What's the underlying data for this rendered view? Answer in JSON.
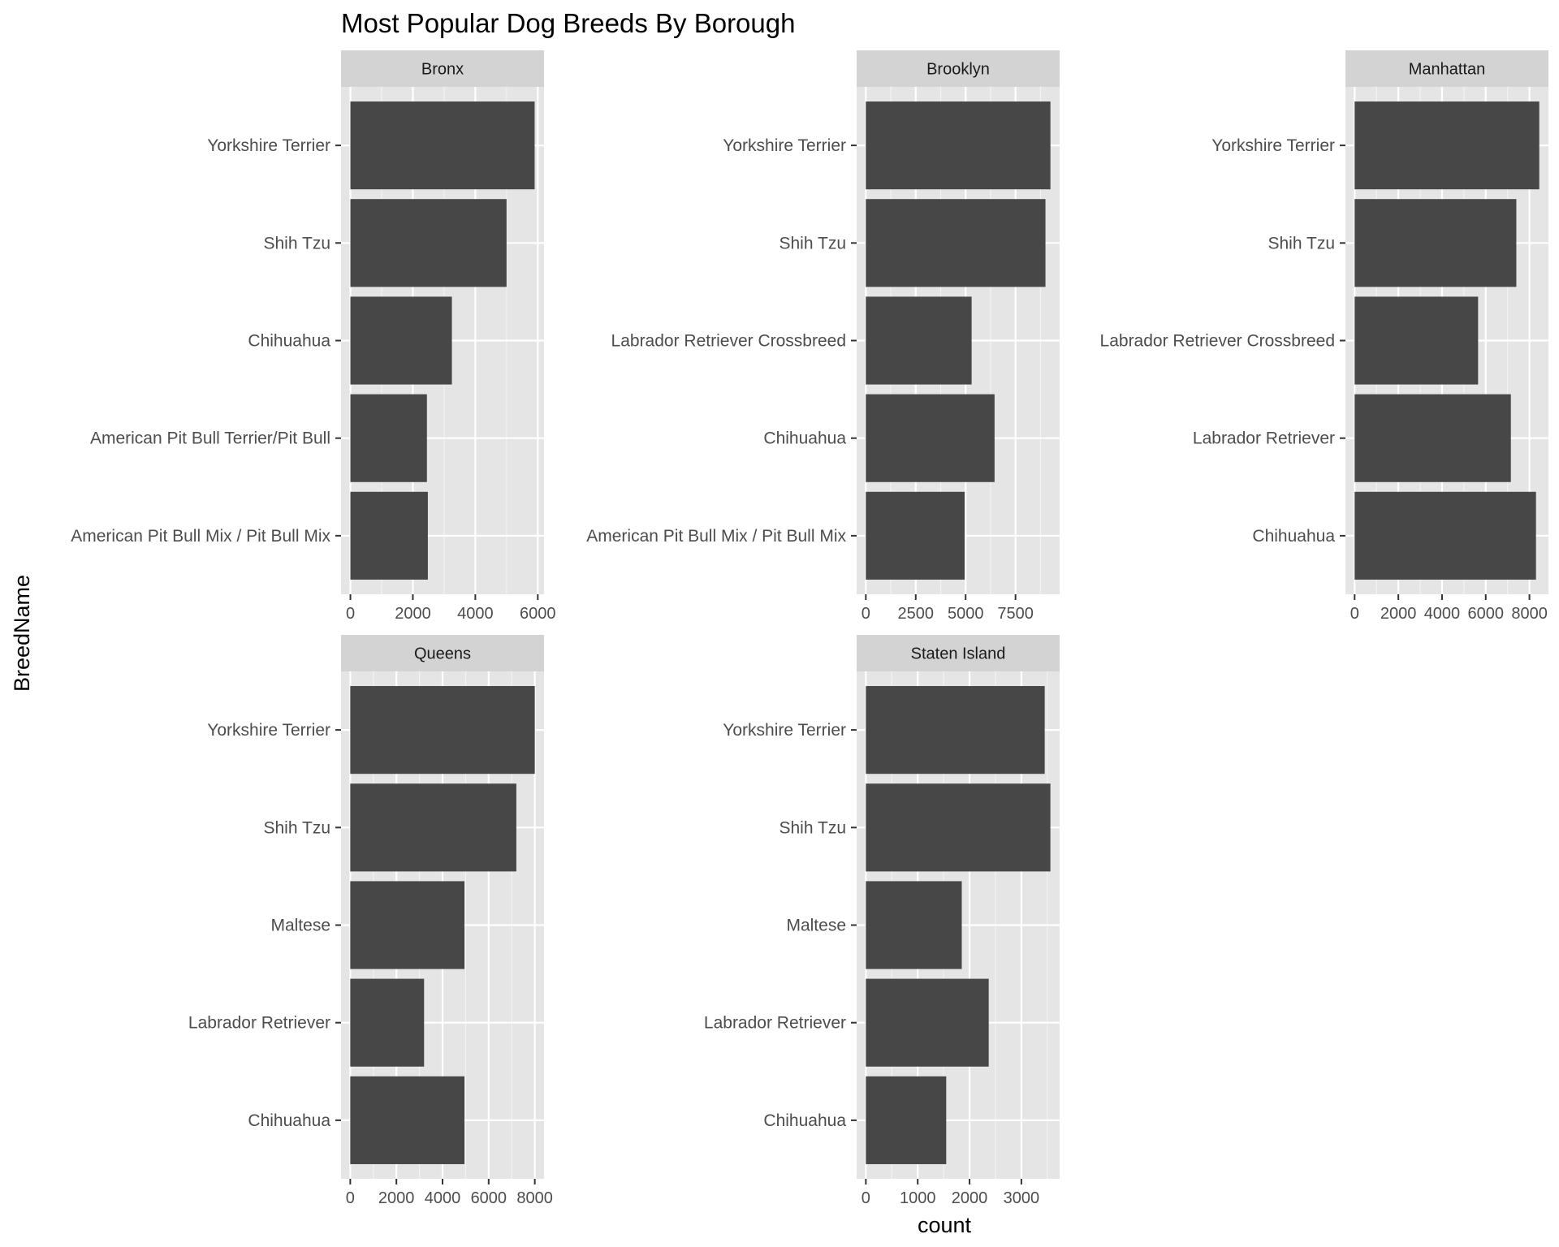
{
  "chart_data": {
    "type": "bar",
    "orientation": "horizontal",
    "title": "Most Popular Dog Breeds By Borough",
    "xlabel": "count",
    "ylabel": "BreedName",
    "grid": true,
    "colors": {
      "bar": "#474747",
      "panel": "#e5e5e5",
      "strip": "#d3d3d3",
      "grid_major": "#ffffff",
      "grid_minor": "#f2f2f2"
    },
    "facets": [
      {
        "name": "Bronx",
        "categories": [
          "Yorkshire Terrier",
          "Shih Tzu",
          "Chihuahua",
          "American Pit Bull Terrier/Pit Bull",
          "American Pit Bull Mix / Pit Bull Mix"
        ],
        "values": [
          5900,
          5000,
          3250,
          2450,
          2480
        ],
        "xlim": [
          -300,
          6200
        ],
        "ticks": [
          0,
          2000,
          4000,
          6000
        ],
        "tick_labels": [
          "0",
          "2000",
          "4000",
          "6000"
        ]
      },
      {
        "name": "Brooklyn",
        "categories": [
          "Yorkshire Terrier",
          "Shih Tzu",
          "Labrador Retriever Crossbreed",
          "Chihuahua",
          "American Pit Bull Mix / Pit Bull Mix"
        ],
        "values": [
          9250,
          9000,
          5300,
          6450,
          4950
        ],
        "xlim": [
          -460,
          9710
        ],
        "ticks": [
          0,
          2500,
          5000,
          7500
        ],
        "tick_labels": [
          "0",
          "2500",
          "5000",
          "7500"
        ]
      },
      {
        "name": "Manhattan",
        "categories": [
          "Yorkshire Terrier",
          "Shih Tzu",
          "Labrador Retriever Crossbreed",
          "Labrador Retriever",
          "Chihuahua"
        ],
        "values": [
          8450,
          7400,
          5650,
          7150,
          8300
        ],
        "xlim": [
          -420,
          8870
        ],
        "ticks": [
          0,
          2000,
          4000,
          6000,
          8000
        ],
        "tick_labels": [
          "0",
          "2000",
          "4000",
          "6000",
          "8000"
        ]
      },
      {
        "name": "Queens",
        "categories": [
          "Yorkshire Terrier",
          "Shih Tzu",
          "Maltese",
          "Labrador Retriever",
          "Chihuahua"
        ],
        "values": [
          8000,
          7200,
          4950,
          3200,
          4950
        ],
        "xlim": [
          -400,
          8400
        ],
        "ticks": [
          0,
          2000,
          4000,
          6000,
          8000
        ],
        "tick_labels": [
          "0",
          "2000",
          "4000",
          "6000",
          "8000"
        ]
      },
      {
        "name": "Staten Island",
        "categories": [
          "Yorkshire Terrier",
          "Shih Tzu",
          "Maltese",
          "Labrador Retriever",
          "Chihuahua"
        ],
        "values": [
          3450,
          3560,
          1850,
          2370,
          1550
        ],
        "xlim": [
          -178,
          3738
        ],
        "ticks": [
          0,
          1000,
          2000,
          3000
        ],
        "tick_labels": [
          "0",
          "1000",
          "2000",
          "3000"
        ]
      }
    ]
  }
}
